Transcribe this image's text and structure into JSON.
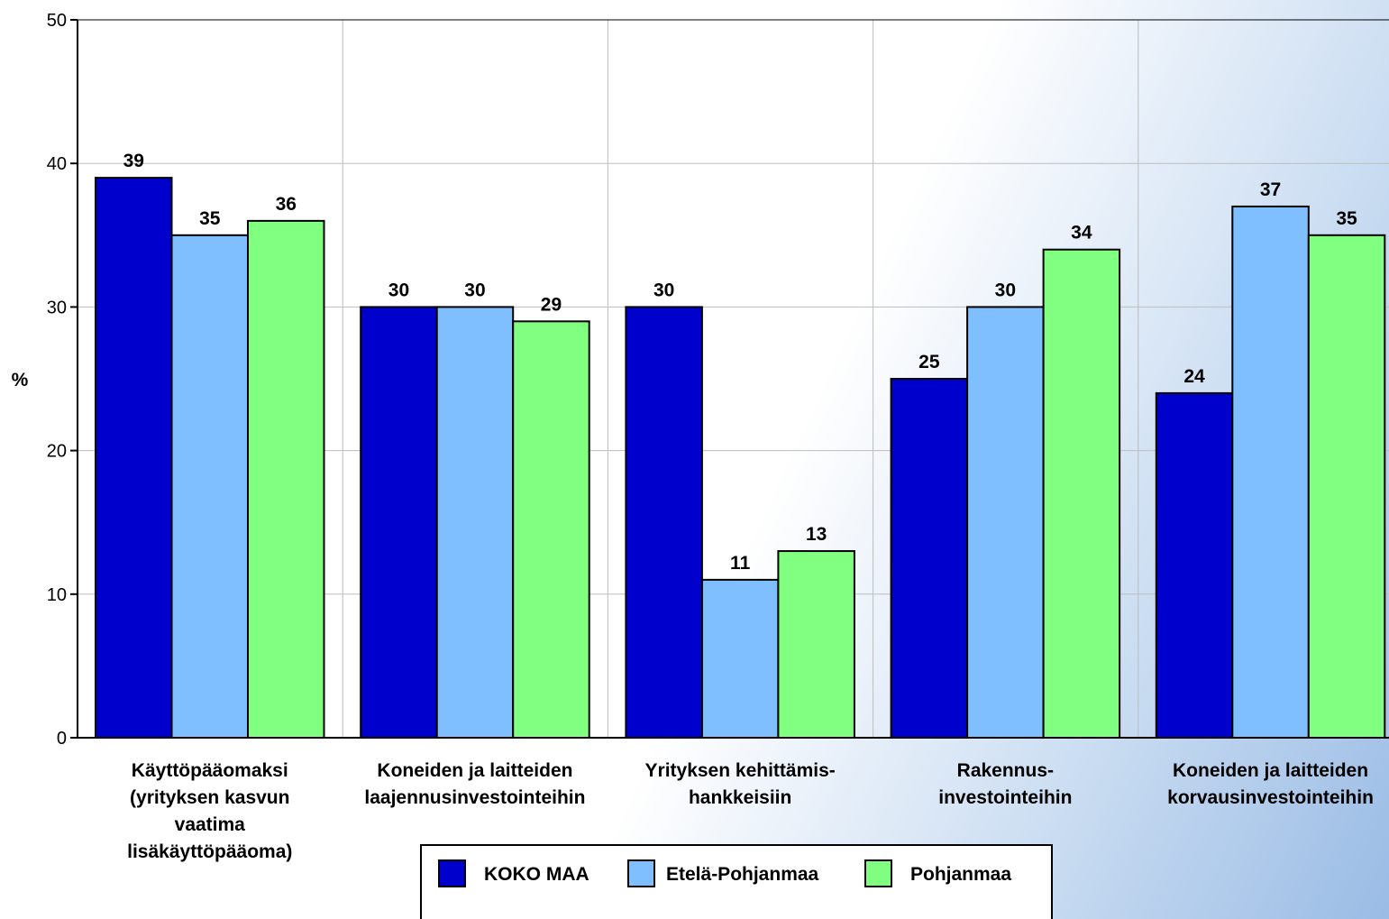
{
  "chart_data": {
    "type": "bar",
    "title": "",
    "ylabel": "%",
    "xlabel": "",
    "ylim": [
      0,
      50
    ],
    "yticks": [
      0,
      10,
      20,
      30,
      40,
      50
    ],
    "grid": true,
    "legend_position": "bottom",
    "categories": [
      [
        "Käyttöpääomaksi",
        "(yrityksen kasvun",
        "vaatima",
        "lisäkäyttöpääoma)"
      ],
      [
        "Koneiden ja laitteiden",
        "laajennusinvestointeihin"
      ],
      [
        "Yrityksen kehittämis-",
        "hankkeisiin"
      ],
      [
        "Rakennus-",
        "investointeihin"
      ],
      [
        "Koneiden ja laitteiden",
        "korvausinvestointeihin"
      ]
    ],
    "series": [
      {
        "name": "KOKO MAA",
        "color": "#0000cc",
        "values": [
          39,
          30,
          30,
          25,
          24
        ]
      },
      {
        "name": "Etelä-Pohjanmaa",
        "color": "#80bfff",
        "values": [
          35,
          30,
          11,
          30,
          37
        ]
      },
      {
        "name": "Pohjanmaa",
        "color": "#80ff80",
        "values": [
          36,
          29,
          13,
          34,
          35
        ]
      }
    ]
  }
}
